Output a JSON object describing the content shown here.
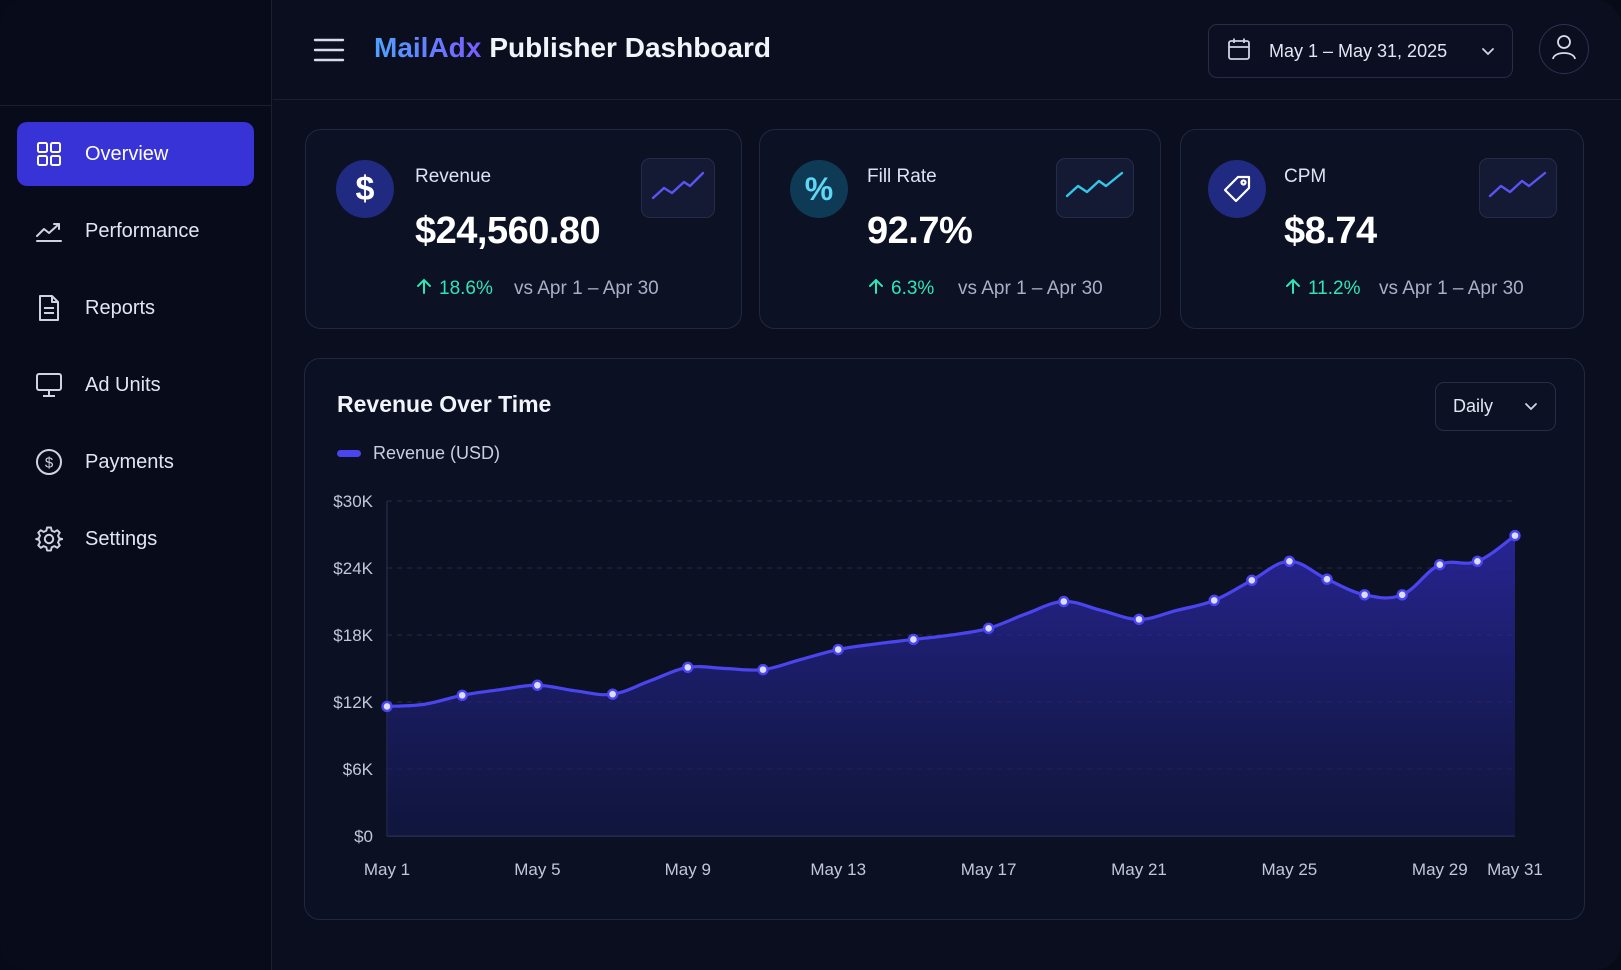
{
  "app": {
    "brand": "MailAdx",
    "title": "Publisher Dashboard"
  },
  "header": {
    "date_range": "May 1 – May 31, 2025"
  },
  "sidebar": {
    "items": [
      {
        "label": "Overview",
        "icon": "grid-icon",
        "active": true
      },
      {
        "label": "Performance",
        "icon": "trend-icon",
        "active": false
      },
      {
        "label": "Reports",
        "icon": "document-icon",
        "active": false
      },
      {
        "label": "Ad Units",
        "icon": "monitor-icon",
        "active": false
      },
      {
        "label": "Payments",
        "icon": "dollar-circle-icon",
        "active": false
      },
      {
        "label": "Settings",
        "icon": "gear-icon",
        "active": false
      }
    ]
  },
  "kpis": [
    {
      "label": "Revenue",
      "value": "$24,560.80",
      "delta": "18.6%",
      "comparison": "vs Apr 1 – Apr 30",
      "icon": "dollar-icon"
    },
    {
      "label": "Fill Rate",
      "value": "92.7%",
      "delta": "6.3%",
      "comparison": "vs Apr 1 – Apr 30",
      "icon": "percent-icon"
    },
    {
      "label": "CPM",
      "value": "$8.74",
      "delta": "11.2%",
      "comparison": "vs Apr 1 – Apr 30",
      "icon": "tag-icon"
    }
  ],
  "colors": {
    "accent": "#3733d6",
    "line": "#4b45f0",
    "positive": "#2ee6b5",
    "teal": "#35c7e8",
    "background": "#0a0e1f"
  },
  "panel": {
    "title": "Revenue Over Time",
    "granularity": "Daily"
  },
  "chart_data": {
    "type": "area",
    "title": "Revenue Over Time",
    "legend": "top-left",
    "series": [
      {
        "name": "Revenue (USD)",
        "x": [
          "May 1",
          "May 2",
          "May 3",
          "May 4",
          "May 5",
          "May 6",
          "May 7",
          "May 8",
          "May 9",
          "May 10",
          "May 11",
          "May 12",
          "May 13",
          "May 14",
          "May 15",
          "May 16",
          "May 17",
          "May 18",
          "May 19",
          "May 20",
          "May 21",
          "May 22",
          "May 23",
          "May 24",
          "May 25",
          "May 26",
          "May 27",
          "May 28",
          "May 29",
          "May 30",
          "May 31"
        ],
        "values": [
          11600,
          11800,
          12600,
          13100,
          13500,
          13000,
          12700,
          13900,
          15100,
          15000,
          14900,
          15800,
          16700,
          17200,
          17600,
          18000,
          18600,
          19900,
          21000,
          20200,
          19400,
          20200,
          21100,
          22900,
          24600,
          23000,
          21600,
          21600,
          24300,
          24600,
          26900
        ]
      }
    ],
    "x_ticks": [
      "May 1",
      "May 5",
      "May 9",
      "May 13",
      "May 17",
      "May 21",
      "May 25",
      "May 29",
      "May 31"
    ],
    "y_ticks": [
      "$0",
      "$6K",
      "$12K",
      "$18K",
      "$24K",
      "$30K"
    ],
    "ylim": [
      0,
      30000
    ],
    "grid": true,
    "markers": [
      {
        "x": "May 1",
        "y": 11600
      },
      {
        "x": "May 3",
        "y": 12600
      },
      {
        "x": "May 5",
        "y": 13500
      },
      {
        "x": "May 7",
        "y": 12700
      },
      {
        "x": "May 9",
        "y": 15100
      },
      {
        "x": "May 11",
        "y": 14900
      },
      {
        "x": "May 13",
        "y": 16700
      },
      {
        "x": "May 15",
        "y": 17600
      },
      {
        "x": "May 17",
        "y": 18600
      },
      {
        "x": "May 19",
        "y": 21000
      },
      {
        "x": "May 21",
        "y": 19400
      },
      {
        "x": "May 23",
        "y": 21100
      },
      {
        "x": "May 24",
        "y": 22900
      },
      {
        "x": "May 25",
        "y": 24600
      },
      {
        "x": "May 26",
        "y": 23000
      },
      {
        "x": "May 27",
        "y": 21600
      },
      {
        "x": "May 28",
        "y": 21600
      },
      {
        "x": "May 29",
        "y": 24300
      },
      {
        "x": "May 30",
        "y": 24600
      },
      {
        "x": "May 31",
        "y": 26900
      }
    ]
  }
}
